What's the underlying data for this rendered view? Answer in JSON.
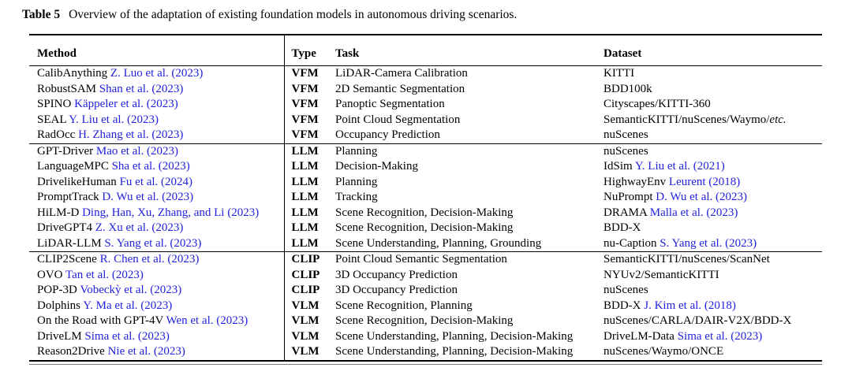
{
  "caption": {
    "label": "Table 5",
    "text": "Overview of the adaptation of existing foundation models in autonomous driving scenarios."
  },
  "colors": {
    "citation_link": "#2222dd",
    "rule": "#000000"
  },
  "table": {
    "columns": [
      "Method",
      "Type",
      "Task",
      "Dataset"
    ],
    "sections": [
      {
        "rows": [
          {
            "method": "CalibAnything",
            "method_cite": "Z. Luo et al. (2023)",
            "type": "VFM",
            "task": "LiDAR-Camera Calibration",
            "dataset": "KITTI",
            "dataset_cite": ""
          },
          {
            "method": "RobustSAM",
            "method_cite": "Shan et al. (2023)",
            "type": "VFM",
            "task": "2D Semantic Segmentation",
            "dataset": "BDD100k",
            "dataset_cite": ""
          },
          {
            "method": "SPINO",
            "method_cite": "Käppeler et al. (2023)",
            "type": "VFM",
            "task": "Panoptic Segmentation",
            "dataset": "Cityscapes/KITTI-360",
            "dataset_cite": ""
          },
          {
            "method": "SEAL",
            "method_cite": "Y. Liu et al. (2023)",
            "type": "VFM",
            "task": "Point Cloud Segmentation",
            "dataset": "SemanticKITTI/nuScenes/Waymo/",
            "dataset_cite": "",
            "dataset_italic": "etc."
          },
          {
            "method": "RadOcc",
            "method_cite": "H. Zhang et al. (2023)",
            "type": "VFM",
            "task": "Occupancy Prediction",
            "dataset": "nuScenes",
            "dataset_cite": ""
          }
        ]
      },
      {
        "rows": [
          {
            "method": "GPT-Driver",
            "method_cite": "Mao et al. (2023)",
            "type": "LLM",
            "task": "Planning",
            "dataset": "nuScenes",
            "dataset_cite": ""
          },
          {
            "method": "LanguageMPC",
            "method_cite": "Sha et al. (2023)",
            "type": "LLM",
            "task": "Decision-Making",
            "dataset": "IdSim",
            "dataset_cite": "Y. Liu et al. (2021)"
          },
          {
            "method": "DrivelikeHuman",
            "method_cite": "Fu et al. (2024)",
            "type": "LLM",
            "task": "Planning",
            "dataset": "HighwayEnv",
            "dataset_cite": "Leurent (2018)"
          },
          {
            "method": "PromptTrack",
            "method_cite": "D. Wu et al. (2023)",
            "type": "LLM",
            "task": "Tracking",
            "dataset": "NuPrompt",
            "dataset_cite": "D. Wu et al. (2023)"
          },
          {
            "method": "HiLM-D",
            "method_cite": "Ding, Han, Xu, Zhang, and Li (2023)",
            "type": "LLM",
            "task": "Scene Recognition, Decision-Making",
            "dataset": "DRAMA",
            "dataset_cite": "Malla et al. (2023)"
          },
          {
            "method": "DriveGPT4",
            "method_cite": "Z. Xu et al. (2023)",
            "type": "LLM",
            "task": "Scene Recognition, Decision-Making",
            "dataset": "BDD-X",
            "dataset_cite": ""
          },
          {
            "method": "LiDAR-LLM",
            "method_cite": "S. Yang et al. (2023)",
            "type": "LLM",
            "task": "Scene Understanding, Planning, Grounding",
            "dataset": "nu-Caption",
            "dataset_cite": "S. Yang et al. (2023)"
          }
        ]
      },
      {
        "rows": [
          {
            "method": "CLIP2Scene",
            "method_cite": "R. Chen et al. (2023)",
            "type": "CLIP",
            "task": "Point Cloud Semantic Segmentation",
            "dataset": "SemanticKITTI/nuScenes/ScanNet",
            "dataset_cite": ""
          },
          {
            "method": "OVO",
            "method_cite": "Tan et al. (2023)",
            "type": "CLIP",
            "task": "3D Occupancy Prediction",
            "dataset": "NYUv2/SemanticKITTI",
            "dataset_cite": ""
          },
          {
            "method": "POP-3D",
            "method_cite": "Vobeckỳ et al. (2023)",
            "type": "CLIP",
            "task": "3D Occupancy Prediction",
            "dataset": "nuScenes",
            "dataset_cite": ""
          },
          {
            "method": "Dolphins",
            "method_cite": "Y. Ma et al. (2023)",
            "type": "VLM",
            "task": "Scene Recognition, Planning",
            "dataset": "BDD-X",
            "dataset_cite": "J. Kim et al. (2018)"
          },
          {
            "method": "On the Road with GPT-4V",
            "method_cite": "Wen et al. (2023)",
            "type": "VLM",
            "task": "Scene Recognition, Decision-Making",
            "dataset": "nuScenes/CARLA/DAIR-V2X/BDD-X",
            "dataset_cite": ""
          },
          {
            "method": "DriveLM",
            "method_cite": "Sima et al. (2023)",
            "type": "VLM",
            "task": "Scene Understanding, Planning, Decision-Making",
            "dataset": "DriveLM-Data",
            "dataset_cite": "Sima et al. (2023)"
          },
          {
            "method": "Reason2Drive",
            "method_cite": "Nie et al. (2023)",
            "type": "VLM",
            "task": "Scene Understanding, Planning, Decision-Making",
            "dataset": "nuScenes/Waymo/ONCE",
            "dataset_cite": ""
          }
        ]
      }
    ]
  }
}
